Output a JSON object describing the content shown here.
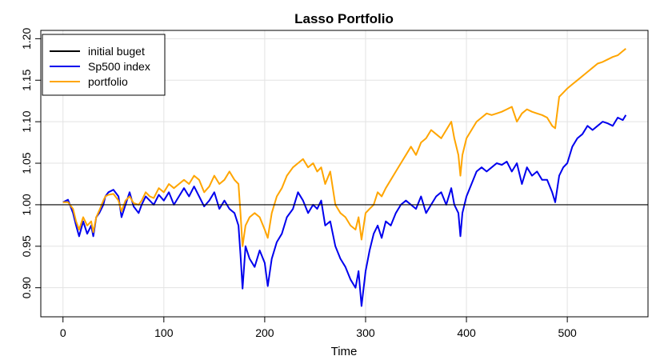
{
  "chart_data": {
    "type": "line",
    "title": "Lasso Portfolio",
    "xlabel": "Time",
    "ylabel": "",
    "xlim": [
      -22,
      580
    ],
    "ylim": [
      0.865,
      1.21
    ],
    "x_ticks": [
      0,
      100,
      200,
      300,
      400,
      500
    ],
    "y_ticks": [
      0.9,
      0.95,
      1.0,
      1.05,
      1.1,
      1.15,
      1.2
    ],
    "y_tick_labels": [
      "0.90",
      "0.95",
      "1.00",
      "1.05",
      "1.10",
      "1.15",
      "1.20"
    ],
    "grid": true,
    "legend_position": "top-left",
    "hline": {
      "name": "initial buget",
      "y": 1.0,
      "color": "#000000"
    },
    "series": [
      {
        "name": "Sp500 index",
        "color": "#0000ee",
        "points": [
          [
            0,
            1.003
          ],
          [
            5,
            1.006
          ],
          [
            10,
            0.99
          ],
          [
            13,
            0.975
          ],
          [
            16,
            0.962
          ],
          [
            20,
            0.98
          ],
          [
            24,
            0.965
          ],
          [
            28,
            0.975
          ],
          [
            30,
            0.962
          ],
          [
            33,
            0.985
          ],
          [
            36,
            0.99
          ],
          [
            40,
            1.0
          ],
          [
            42,
            1.01
          ],
          [
            45,
            1.015
          ],
          [
            50,
            1.018
          ],
          [
            55,
            1.01
          ],
          [
            58,
            0.985
          ],
          [
            62,
            1.0
          ],
          [
            66,
            1.015
          ],
          [
            70,
            0.998
          ],
          [
            75,
            0.99
          ],
          [
            78,
            1.0
          ],
          [
            82,
            1.01
          ],
          [
            86,
            1.005
          ],
          [
            90,
            1.0
          ],
          [
            95,
            1.012
          ],
          [
            100,
            1.005
          ],
          [
            105,
            1.015
          ],
          [
            110,
            1.0
          ],
          [
            115,
            1.01
          ],
          [
            120,
            1.02
          ],
          [
            125,
            1.01
          ],
          [
            130,
            1.022
          ],
          [
            135,
            1.01
          ],
          [
            140,
            0.998
          ],
          [
            145,
            1.005
          ],
          [
            150,
            1.015
          ],
          [
            155,
            0.995
          ],
          [
            160,
            1.005
          ],
          [
            165,
            0.995
          ],
          [
            170,
            0.99
          ],
          [
            174,
            0.975
          ],
          [
            176,
            0.94
          ],
          [
            178,
            0.899
          ],
          [
            181,
            0.95
          ],
          [
            185,
            0.935
          ],
          [
            190,
            0.925
          ],
          [
            195,
            0.945
          ],
          [
            200,
            0.93
          ],
          [
            203,
            0.902
          ],
          [
            207,
            0.935
          ],
          [
            212,
            0.955
          ],
          [
            217,
            0.965
          ],
          [
            222,
            0.985
          ],
          [
            228,
            0.995
          ],
          [
            233,
            1.015
          ],
          [
            238,
            1.005
          ],
          [
            243,
            0.99
          ],
          [
            248,
            1.0
          ],
          [
            252,
            0.995
          ],
          [
            256,
            1.005
          ],
          [
            260,
            0.975
          ],
          [
            265,
            0.98
          ],
          [
            270,
            0.95
          ],
          [
            275,
            0.935
          ],
          [
            280,
            0.925
          ],
          [
            285,
            0.91
          ],
          [
            290,
            0.9
          ],
          [
            293,
            0.92
          ],
          [
            296,
            0.878
          ],
          [
            300,
            0.92
          ],
          [
            304,
            0.945
          ],
          [
            308,
            0.965
          ],
          [
            312,
            0.975
          ],
          [
            316,
            0.96
          ],
          [
            320,
            0.98
          ],
          [
            325,
            0.975
          ],
          [
            330,
            0.99
          ],
          [
            335,
            1.0
          ],
          [
            340,
            1.005
          ],
          [
            345,
            1.0
          ],
          [
            350,
            0.995
          ],
          [
            355,
            1.01
          ],
          [
            360,
            0.99
          ],
          [
            365,
            1.0
          ],
          [
            370,
            1.01
          ],
          [
            375,
            1.015
          ],
          [
            380,
            1.0
          ],
          [
            385,
            1.02
          ],
          [
            388,
            1.0
          ],
          [
            392,
            0.99
          ],
          [
            394,
            0.962
          ],
          [
            396,
            0.99
          ],
          [
            400,
            1.01
          ],
          [
            405,
            1.025
          ],
          [
            410,
            1.04
          ],
          [
            415,
            1.045
          ],
          [
            420,
            1.04
          ],
          [
            425,
            1.045
          ],
          [
            430,
            1.05
          ],
          [
            435,
            1.048
          ],
          [
            440,
            1.052
          ],
          [
            445,
            1.04
          ],
          [
            450,
            1.05
          ],
          [
            455,
            1.025
          ],
          [
            460,
            1.045
          ],
          [
            465,
            1.035
          ],
          [
            470,
            1.04
          ],
          [
            475,
            1.03
          ],
          [
            480,
            1.03
          ],
          [
            485,
            1.015
          ],
          [
            488,
            1.003
          ],
          [
            492,
            1.035
          ],
          [
            496,
            1.045
          ],
          [
            500,
            1.05
          ],
          [
            505,
            1.07
          ],
          [
            510,
            1.08
          ],
          [
            515,
            1.085
          ],
          [
            520,
            1.095
          ],
          [
            525,
            1.09
          ],
          [
            530,
            1.095
          ],
          [
            535,
            1.1
          ],
          [
            540,
            1.098
          ],
          [
            545,
            1.095
          ],
          [
            550,
            1.105
          ],
          [
            555,
            1.102
          ],
          [
            558,
            1.108
          ]
        ]
      },
      {
        "name": "portfolio",
        "color": "#ffa500",
        "points": [
          [
            0,
            1.003
          ],
          [
            5,
            1.003
          ],
          [
            10,
            0.995
          ],
          [
            13,
            0.98
          ],
          [
            16,
            0.97
          ],
          [
            20,
            0.985
          ],
          [
            24,
            0.975
          ],
          [
            28,
            0.98
          ],
          [
            30,
            0.967
          ],
          [
            33,
            0.985
          ],
          [
            36,
            0.993
          ],
          [
            40,
            1.005
          ],
          [
            42,
            1.01
          ],
          [
            45,
            1.012
          ],
          [
            50,
            1.013
          ],
          [
            55,
            1.005
          ],
          [
            58,
            0.992
          ],
          [
            62,
            1.005
          ],
          [
            66,
            1.01
          ],
          [
            70,
            1.002
          ],
          [
            75,
            1.0
          ],
          [
            78,
            1.005
          ],
          [
            82,
            1.015
          ],
          [
            86,
            1.01
          ],
          [
            90,
            1.008
          ],
          [
            95,
            1.02
          ],
          [
            100,
            1.015
          ],
          [
            105,
            1.025
          ],
          [
            110,
            1.02
          ],
          [
            115,
            1.025
          ],
          [
            120,
            1.03
          ],
          [
            125,
            1.025
          ],
          [
            130,
            1.035
          ],
          [
            135,
            1.03
          ],
          [
            140,
            1.015
          ],
          [
            145,
            1.022
          ],
          [
            150,
            1.035
          ],
          [
            155,
            1.025
          ],
          [
            160,
            1.03
          ],
          [
            165,
            1.04
          ],
          [
            170,
            1.03
          ],
          [
            174,
            1.025
          ],
          [
            176,
            0.99
          ],
          [
            178,
            0.95
          ],
          [
            181,
            0.975
          ],
          [
            185,
            0.985
          ],
          [
            190,
            0.99
          ],
          [
            195,
            0.985
          ],
          [
            200,
            0.97
          ],
          [
            203,
            0.96
          ],
          [
            207,
            0.99
          ],
          [
            212,
            1.01
          ],
          [
            217,
            1.02
          ],
          [
            222,
            1.035
          ],
          [
            228,
            1.045
          ],
          [
            233,
            1.05
          ],
          [
            238,
            1.055
          ],
          [
            243,
            1.045
          ],
          [
            248,
            1.05
          ],
          [
            252,
            1.04
          ],
          [
            256,
            1.045
          ],
          [
            260,
            1.025
          ],
          [
            265,
            1.04
          ],
          [
            270,
            1.0
          ],
          [
            275,
            0.99
          ],
          [
            280,
            0.985
          ],
          [
            285,
            0.975
          ],
          [
            290,
            0.97
          ],
          [
            293,
            0.985
          ],
          [
            296,
            0.958
          ],
          [
            300,
            0.99
          ],
          [
            304,
            0.995
          ],
          [
            308,
            1.0
          ],
          [
            312,
            1.015
          ],
          [
            316,
            1.01
          ],
          [
            320,
            1.02
          ],
          [
            325,
            1.03
          ],
          [
            330,
            1.04
          ],
          [
            335,
            1.05
          ],
          [
            340,
            1.06
          ],
          [
            345,
            1.07
          ],
          [
            350,
            1.06
          ],
          [
            355,
            1.075
          ],
          [
            360,
            1.08
          ],
          [
            365,
            1.09
          ],
          [
            370,
            1.085
          ],
          [
            375,
            1.08
          ],
          [
            380,
            1.09
          ],
          [
            385,
            1.1
          ],
          [
            388,
            1.08
          ],
          [
            392,
            1.06
          ],
          [
            394,
            1.035
          ],
          [
            396,
            1.06
          ],
          [
            400,
            1.08
          ],
          [
            405,
            1.09
          ],
          [
            410,
            1.1
          ],
          [
            415,
            1.105
          ],
          [
            420,
            1.11
          ],
          [
            425,
            1.108
          ],
          [
            430,
            1.11
          ],
          [
            435,
            1.112
          ],
          [
            440,
            1.115
          ],
          [
            445,
            1.118
          ],
          [
            450,
            1.1
          ],
          [
            455,
            1.11
          ],
          [
            460,
            1.115
          ],
          [
            465,
            1.112
          ],
          [
            470,
            1.11
          ],
          [
            475,
            1.108
          ],
          [
            480,
            1.105
          ],
          [
            485,
            1.095
          ],
          [
            488,
            1.092
          ],
          [
            492,
            1.13
          ],
          [
            496,
            1.135
          ],
          [
            500,
            1.14
          ],
          [
            505,
            1.145
          ],
          [
            510,
            1.15
          ],
          [
            515,
            1.155
          ],
          [
            520,
            1.16
          ],
          [
            525,
            1.165
          ],
          [
            530,
            1.17
          ],
          [
            535,
            1.172
          ],
          [
            540,
            1.175
          ],
          [
            545,
            1.178
          ],
          [
            550,
            1.18
          ],
          [
            555,
            1.185
          ],
          [
            558,
            1.188
          ]
        ]
      }
    ]
  }
}
